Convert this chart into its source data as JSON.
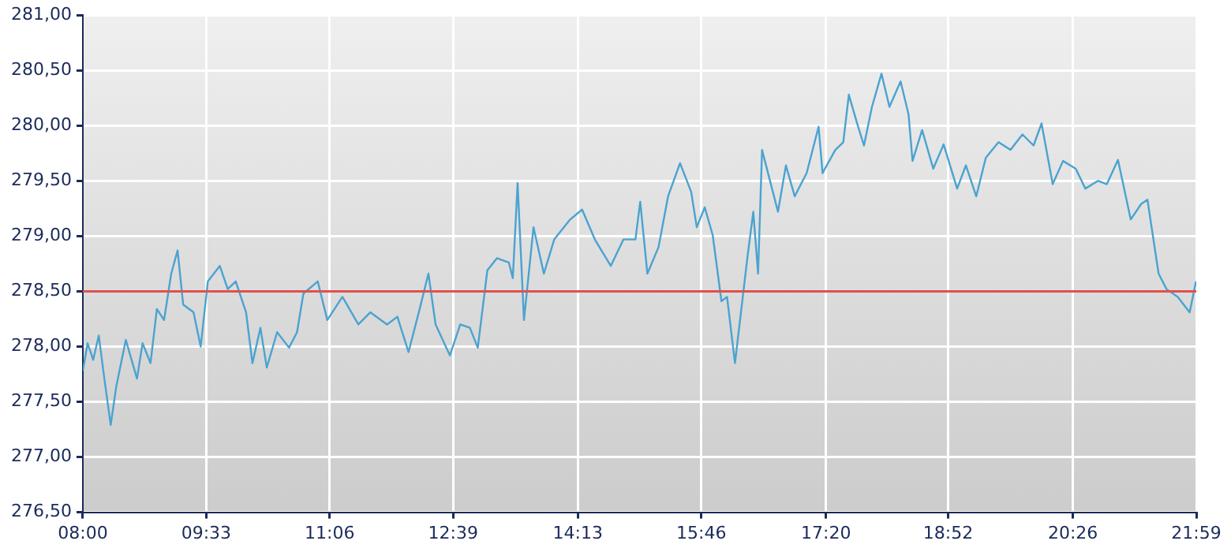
{
  "chart_data": {
    "type": "line",
    "color": "#4aa3d0",
    "x": [
      8.0,
      8.06,
      8.13,
      8.2,
      8.27,
      8.35,
      8.42,
      8.54,
      8.68,
      8.75,
      8.85,
      8.93,
      9.02,
      9.11,
      9.19,
      9.26,
      9.39,
      9.48,
      9.57,
      9.72,
      9.82,
      9.92,
      10.05,
      10.13,
      10.23,
      10.31,
      10.44,
      10.59,
      10.69,
      10.77,
      10.95,
      11.07,
      11.26,
      11.46,
      11.61,
      11.82,
      11.95,
      12.09,
      12.23,
      12.34,
      12.43,
      12.61,
      12.74,
      12.86,
      12.96,
      13.08,
      13.2,
      13.35,
      13.4,
      13.46,
      13.54,
      13.66,
      13.79,
      13.92,
      14.12,
      14.27,
      14.43,
      14.63,
      14.79,
      14.94,
      15.0,
      15.09,
      15.23,
      15.35,
      15.5,
      15.64,
      15.71,
      15.81,
      15.91,
      16.02,
      16.09,
      16.19,
      16.27,
      16.35,
      16.42,
      16.48,
      16.53,
      16.63,
      16.73,
      16.83,
      16.94,
      17.09,
      17.24,
      17.29,
      17.45,
      17.55,
      17.62,
      17.72,
      17.81,
      17.91,
      18.03,
      18.13,
      18.27,
      18.37,
      18.42,
      18.54,
      18.68,
      18.81,
      18.98,
      19.09,
      19.22,
      19.34,
      19.5,
      19.65,
      19.8,
      19.94,
      20.04,
      20.18,
      20.31,
      20.47,
      20.59,
      20.75,
      20.86,
      21.0,
      21.16,
      21.29,
      21.37,
      21.51,
      21.61,
      21.75,
      21.9,
      21.98
    ],
    "values": [
      277.78,
      278.03,
      277.88,
      278.1,
      277.71,
      277.29,
      277.64,
      278.06,
      277.71,
      278.03,
      277.85,
      278.34,
      278.24,
      278.66,
      278.87,
      278.38,
      278.31,
      278.0,
      278.59,
      278.73,
      278.52,
      278.59,
      278.31,
      277.85,
      278.17,
      277.81,
      278.13,
      277.99,
      278.13,
      278.48,
      278.59,
      278.24,
      278.45,
      278.2,
      278.31,
      278.2,
      278.27,
      277.95,
      278.34,
      278.66,
      278.2,
      277.92,
      278.2,
      278.17,
      277.99,
      278.69,
      278.8,
      278.76,
      278.62,
      279.48,
      278.24,
      279.08,
      278.66,
      278.97,
      279.15,
      279.24,
      278.97,
      278.73,
      278.97,
      278.97,
      279.31,
      278.66,
      278.9,
      279.36,
      279.66,
      279.4,
      279.08,
      279.26,
      279.01,
      278.41,
      278.45,
      277.85,
      278.34,
      278.83,
      279.22,
      278.66,
      279.78,
      279.5,
      279.22,
      279.64,
      279.36,
      279.57,
      279.99,
      279.57,
      279.78,
      279.85,
      280.28,
      280.03,
      279.82,
      280.17,
      280.47,
      280.17,
      280.4,
      280.1,
      279.68,
      279.96,
      279.61,
      279.83,
      279.43,
      279.64,
      279.36,
      279.71,
      279.85,
      279.78,
      279.92,
      279.82,
      280.02,
      279.47,
      279.68,
      279.61,
      279.43,
      279.5,
      279.47,
      279.69,
      279.15,
      279.29,
      279.33,
      278.66,
      278.52,
      278.45,
      278.31,
      278.59
    ],
    "xlim": [
      8,
      21.9833
    ],
    "xticks": [
      {
        "value": 8,
        "label": "08:00"
      },
      {
        "value": 9.55,
        "label": "09:33"
      },
      {
        "value": 11.1,
        "label": "11:06"
      },
      {
        "value": 12.65,
        "label": "12:39"
      },
      {
        "value": 14.2167,
        "label": "14:13"
      },
      {
        "value": 15.7667,
        "label": "15:46"
      },
      {
        "value": 17.3333,
        "label": "17:20"
      },
      {
        "value": 18.8667,
        "label": "18:52"
      },
      {
        "value": 20.4333,
        "label": "20:26"
      },
      {
        "value": 21.9833,
        "label": "21:59"
      }
    ],
    "ylim": [
      276.5,
      281
    ],
    "yticks": [
      {
        "value": 276.5,
        "label": "276,50"
      },
      {
        "value": 277,
        "label": "277,00"
      },
      {
        "value": 277.5,
        "label": "277,50"
      },
      {
        "value": 278,
        "label": "278,00"
      },
      {
        "value": 278.5,
        "label": "278,50"
      },
      {
        "value": 279,
        "label": "279,00"
      },
      {
        "value": 279.5,
        "label": "279,50"
      },
      {
        "value": 280,
        "label": "280,00"
      },
      {
        "value": 280.5,
        "label": "280,50"
      },
      {
        "value": 281,
        "label": "281,00"
      }
    ],
    "ref_lines": [
      {
        "axis": "y",
        "value": 278.5,
        "color": "#e05050"
      }
    ],
    "grid": true,
    "legend": false,
    "marker": "none",
    "line_style": "solid"
  }
}
